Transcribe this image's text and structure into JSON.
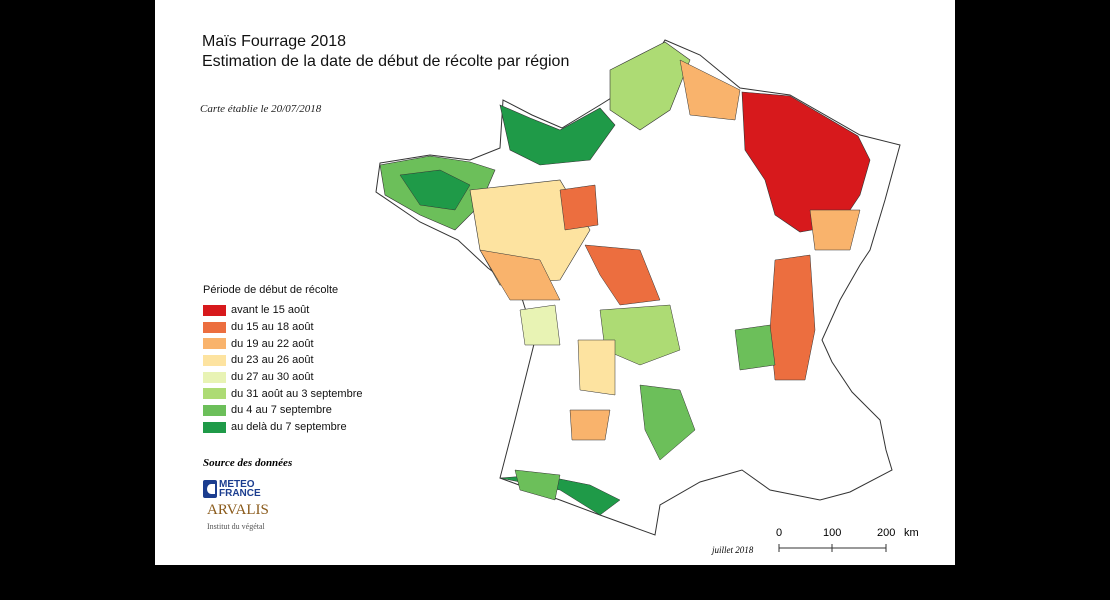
{
  "title_line1": "Maïs Fourrage 2018",
  "title_line2": "Estimation de la date de début de récolte par région",
  "map_date": "Carte établie le 20/07/2018",
  "legend": {
    "title": "Période de début de récolte",
    "items": [
      {
        "label": "avant le 15 août",
        "color": "#d7191c"
      },
      {
        "label": "du 15 au 18 août",
        "color": "#ec6e3f"
      },
      {
        "label": "du 19 au 22 août",
        "color": "#f9b36c"
      },
      {
        "label": "du 23 au 26 août",
        "color": "#fde3a0"
      },
      {
        "label": "du 27 au 30 août",
        "color": "#e8f3b4"
      },
      {
        "label": "du 31 août au 3 septembre",
        "color": "#addb74"
      },
      {
        "label": "du 4 au 7 septembre",
        "color": "#6cbf5a"
      },
      {
        "label": "au delà du 7 septembre",
        "color": "#1f9a48"
      }
    ]
  },
  "source": {
    "label": "Source des données",
    "logo1": "METEO FRANCE",
    "logo2": "ARVALIS",
    "logo2_sub": "Institut du végétal"
  },
  "footer_date": "juillet 2018",
  "scale": {
    "ticks": [
      "0",
      "100",
      "200"
    ],
    "unit": "km"
  }
}
